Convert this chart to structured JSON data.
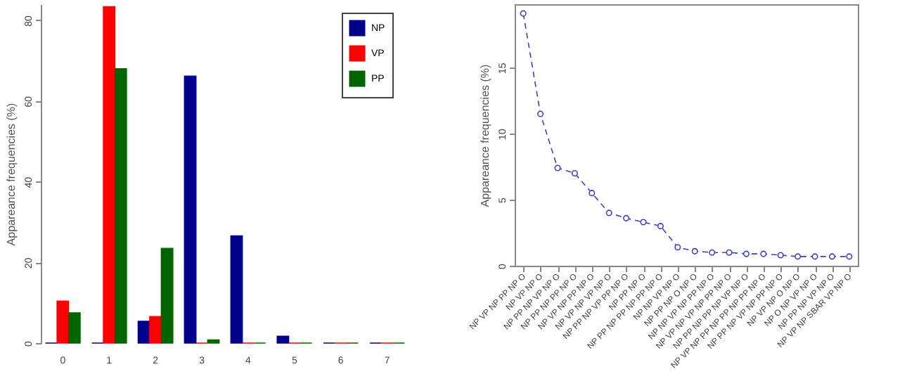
{
  "chart_data": [
    {
      "type": "bar",
      "ylabel": "Appareance frequencies (%)",
      "categories": [
        "0",
        "1",
        "2",
        "3",
        "4",
        "5",
        "6",
        "7"
      ],
      "series": [
        {
          "name": "NP",
          "color": "#00008b",
          "values": [
            0,
            0,
            5.4,
            66.2,
            26.6,
            1.7,
            0,
            0
          ]
        },
        {
          "name": "VP",
          "color": "#ff0000",
          "values": [
            10.4,
            83.4,
            6.6,
            0,
            0,
            0,
            0,
            0
          ]
        },
        {
          "name": "PP",
          "color": "#006400",
          "values": [
            7.5,
            68.0,
            23.5,
            0.8,
            0,
            0,
            0,
            0
          ]
        }
      ],
      "ylim": [
        0,
        84
      ],
      "yticks": [
        0,
        20,
        40,
        60,
        80
      ],
      "legend": "top right",
      "grid": false
    },
    {
      "type": "line",
      "ylabel": "Appareance frequencies (%)",
      "categories": [
        "NP VP NP PP NP O",
        "NP VP NP O",
        "NP PP NP VP NP O",
        "NP PP NP PP NP O",
        "NP VP NP PP NP O",
        "NP VP NP VP NP O",
        "NP PP NP VP PP NP O",
        "NP PP NP O",
        "NP PP NP PP NP PP NP O",
        "NP NP VP NP O",
        "NP PP NP O NP O",
        "NP NP VP NP PP NP O",
        "NP VP NP VP NP PP NP O",
        "NP PP NP PP NP VP NP O",
        "NP VP NP PP NP PP NP PP NP O",
        "NP PP NP VP NP PP NP O",
        "NP VP NP O NP O",
        "NP O NP VP NP O",
        "NP PP NP VP NP O",
        "NP VP NP SBAR VP NP O"
      ],
      "series": [
        {
          "color": "#4040c0",
          "values": [
            19.1,
            11.5,
            7.4,
            7.0,
            5.5,
            4.0,
            3.6,
            3.3,
            3.0,
            1.4,
            1.1,
            1.0,
            1.0,
            0.9,
            0.9,
            0.8,
            0.7,
            0.7,
            0.7,
            0.7
          ]
        }
      ],
      "ylim": [
        0,
        19.8
      ],
      "yticks": [
        0,
        5,
        10,
        15
      ],
      "marker": "circle",
      "line_style": "dashed",
      "grid": false
    }
  ]
}
